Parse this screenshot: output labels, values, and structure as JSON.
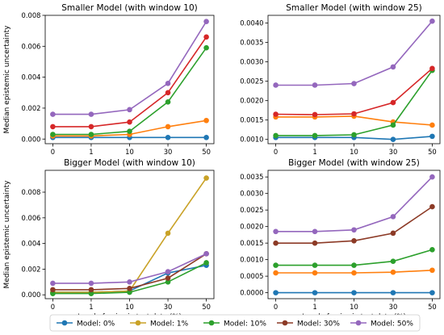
{
  "x_tick_labels": [
    "0",
    "1",
    "10",
    "30",
    "50"
  ],
  "legend": {
    "entries": [
      {
        "label": "Model: 0%",
        "color": "#1f77b4"
      },
      {
        "label": "Model: 1%",
        "color": "#c9a227"
      },
      {
        "label": "Model: 10%",
        "color": "#2ca02c"
      },
      {
        "label": "Model: 30%",
        "color": "#8c3a26"
      },
      {
        "label": "Model: 50%",
        "color": "#9467bd"
      }
    ]
  },
  "chart_data": [
    {
      "type": "line",
      "title": "Smaller Model (with window 10)",
      "xlabel": "",
      "ylabel": "Median epistemic uncertainty",
      "categories": [
        "0",
        "1",
        "10",
        "30",
        "50"
      ],
      "ylim": [
        -0.0003,
        0.008
      ],
      "yticks": [
        0.0,
        0.002,
        0.004,
        0.006,
        0.008
      ],
      "ytick_labels": [
        "0.000",
        "0.002",
        "0.004",
        "0.006",
        "0.008"
      ],
      "series": [
        {
          "name": "Model: 0%",
          "color": "#1f77b4",
          "values": [
            0.0001,
            0.0001,
            0.0001,
            0.0001,
            0.0001
          ]
        },
        {
          "name": "Model: 1%",
          "color": "#ff7f0e",
          "values": [
            0.0002,
            0.0002,
            0.0003,
            0.0008,
            0.0012
          ]
        },
        {
          "name": "Model: 10%",
          "color": "#2ca02c",
          "values": [
            0.0003,
            0.0003,
            0.0005,
            0.0024,
            0.0059
          ]
        },
        {
          "name": "Model: 30%",
          "color": "#d62728",
          "values": [
            0.0008,
            0.0008,
            0.0011,
            0.003,
            0.0066
          ]
        },
        {
          "name": "Model: 50%",
          "color": "#9467bd",
          "values": [
            0.0016,
            0.0016,
            0.0019,
            0.0036,
            0.0076
          ]
        }
      ]
    },
    {
      "type": "line",
      "title": "Smaller Model (with window 25)",
      "xlabel": "",
      "ylabel": "",
      "categories": [
        "0",
        "1",
        "10",
        "30",
        "50"
      ],
      "ylim": [
        0.00089,
        0.0042
      ],
      "yticks": [
        0.001,
        0.0015,
        0.002,
        0.0025,
        0.003,
        0.0035,
        0.004
      ],
      "ytick_labels": [
        "0.0010",
        "0.0015",
        "0.0020",
        "0.0025",
        "0.0030",
        "0.0035",
        "0.0040"
      ],
      "series": [
        {
          "name": "Model: 0%",
          "color": "#1f77b4",
          "values": [
            0.00105,
            0.00105,
            0.00105,
            0.001,
            0.00108
          ]
        },
        {
          "name": "Model: 1%",
          "color": "#ff7f0e",
          "values": [
            0.00158,
            0.00158,
            0.0016,
            0.00145,
            0.00137
          ]
        },
        {
          "name": "Model: 10%",
          "color": "#2ca02c",
          "values": [
            0.0011,
            0.0011,
            0.00112,
            0.00137,
            0.00278
          ]
        },
        {
          "name": "Model: 30%",
          "color": "#d62728",
          "values": [
            0.00165,
            0.00164,
            0.00166,
            0.00195,
            0.00283
          ]
        },
        {
          "name": "Model: 50%",
          "color": "#9467bd",
          "values": [
            0.0024,
            0.0024,
            0.00244,
            0.00287,
            0.00405
          ]
        }
      ]
    },
    {
      "type": "line",
      "title": "Bigger Model (with window 10)",
      "xlabel": "Level of noise in test data (%)",
      "ylabel": "Median epistemic uncertainty",
      "categories": [
        "0",
        "1",
        "10",
        "30",
        "50"
      ],
      "ylim": [
        -0.0003,
        0.0097
      ],
      "yticks": [
        0.0,
        0.002,
        0.004,
        0.006,
        0.008
      ],
      "ytick_labels": [
        "0.000",
        "0.002",
        "0.004",
        "0.006",
        "0.008"
      ],
      "series": [
        {
          "name": "Model: 0%",
          "color": "#1f77b4",
          "values": [
            0.0002,
            0.0002,
            0.0003,
            0.0017,
            0.0023
          ]
        },
        {
          "name": "Model: 1%",
          "color": "#c9a227",
          "values": [
            0.0002,
            0.0002,
            0.0003,
            0.0048,
            0.0091
          ]
        },
        {
          "name": "Model: 10%",
          "color": "#2ca02c",
          "values": [
            0.0001,
            0.0001,
            0.0002,
            0.001,
            0.0025
          ]
        },
        {
          "name": "Model: 30%",
          "color": "#8c3a26",
          "values": [
            0.0004,
            0.0004,
            0.0005,
            0.0013,
            0.0032
          ]
        },
        {
          "name": "Model: 50%",
          "color": "#9467bd",
          "values": [
            0.0009,
            0.0009,
            0.001,
            0.0018,
            0.0032
          ]
        }
      ]
    },
    {
      "type": "line",
      "title": "Bigger Model (with window 25)",
      "xlabel": "Level of noise in test data (%)",
      "ylabel": "",
      "categories": [
        "0",
        "1",
        "10",
        "30",
        "50"
      ],
      "ylim": [
        -0.00018,
        0.0037
      ],
      "yticks": [
        0.0,
        0.0005,
        0.001,
        0.0015,
        0.002,
        0.0025,
        0.003,
        0.0035
      ],
      "ytick_labels": [
        "0.0000",
        "0.0005",
        "0.0010",
        "0.0015",
        "0.0020",
        "0.0025",
        "0.0030",
        "0.0035"
      ],
      "series": [
        {
          "name": "Model: 0%",
          "color": "#1f77b4",
          "values": [
            0.0,
            0.0,
            0.0,
            0.0,
            0.0
          ]
        },
        {
          "name": "Model: 1%",
          "color": "#ff7f0e",
          "values": [
            0.0006,
            0.0006,
            0.0006,
            0.00062,
            0.00068
          ]
        },
        {
          "name": "Model: 10%",
          "color": "#2ca02c",
          "values": [
            0.00083,
            0.00083,
            0.00083,
            0.00095,
            0.0013
          ]
        },
        {
          "name": "Model: 30%",
          "color": "#8c3a26",
          "values": [
            0.0015,
            0.0015,
            0.00157,
            0.0018,
            0.0026
          ]
        },
        {
          "name": "Model: 50%",
          "color": "#9467bd",
          "values": [
            0.00185,
            0.00185,
            0.0019,
            0.0023,
            0.0035
          ]
        }
      ]
    }
  ]
}
